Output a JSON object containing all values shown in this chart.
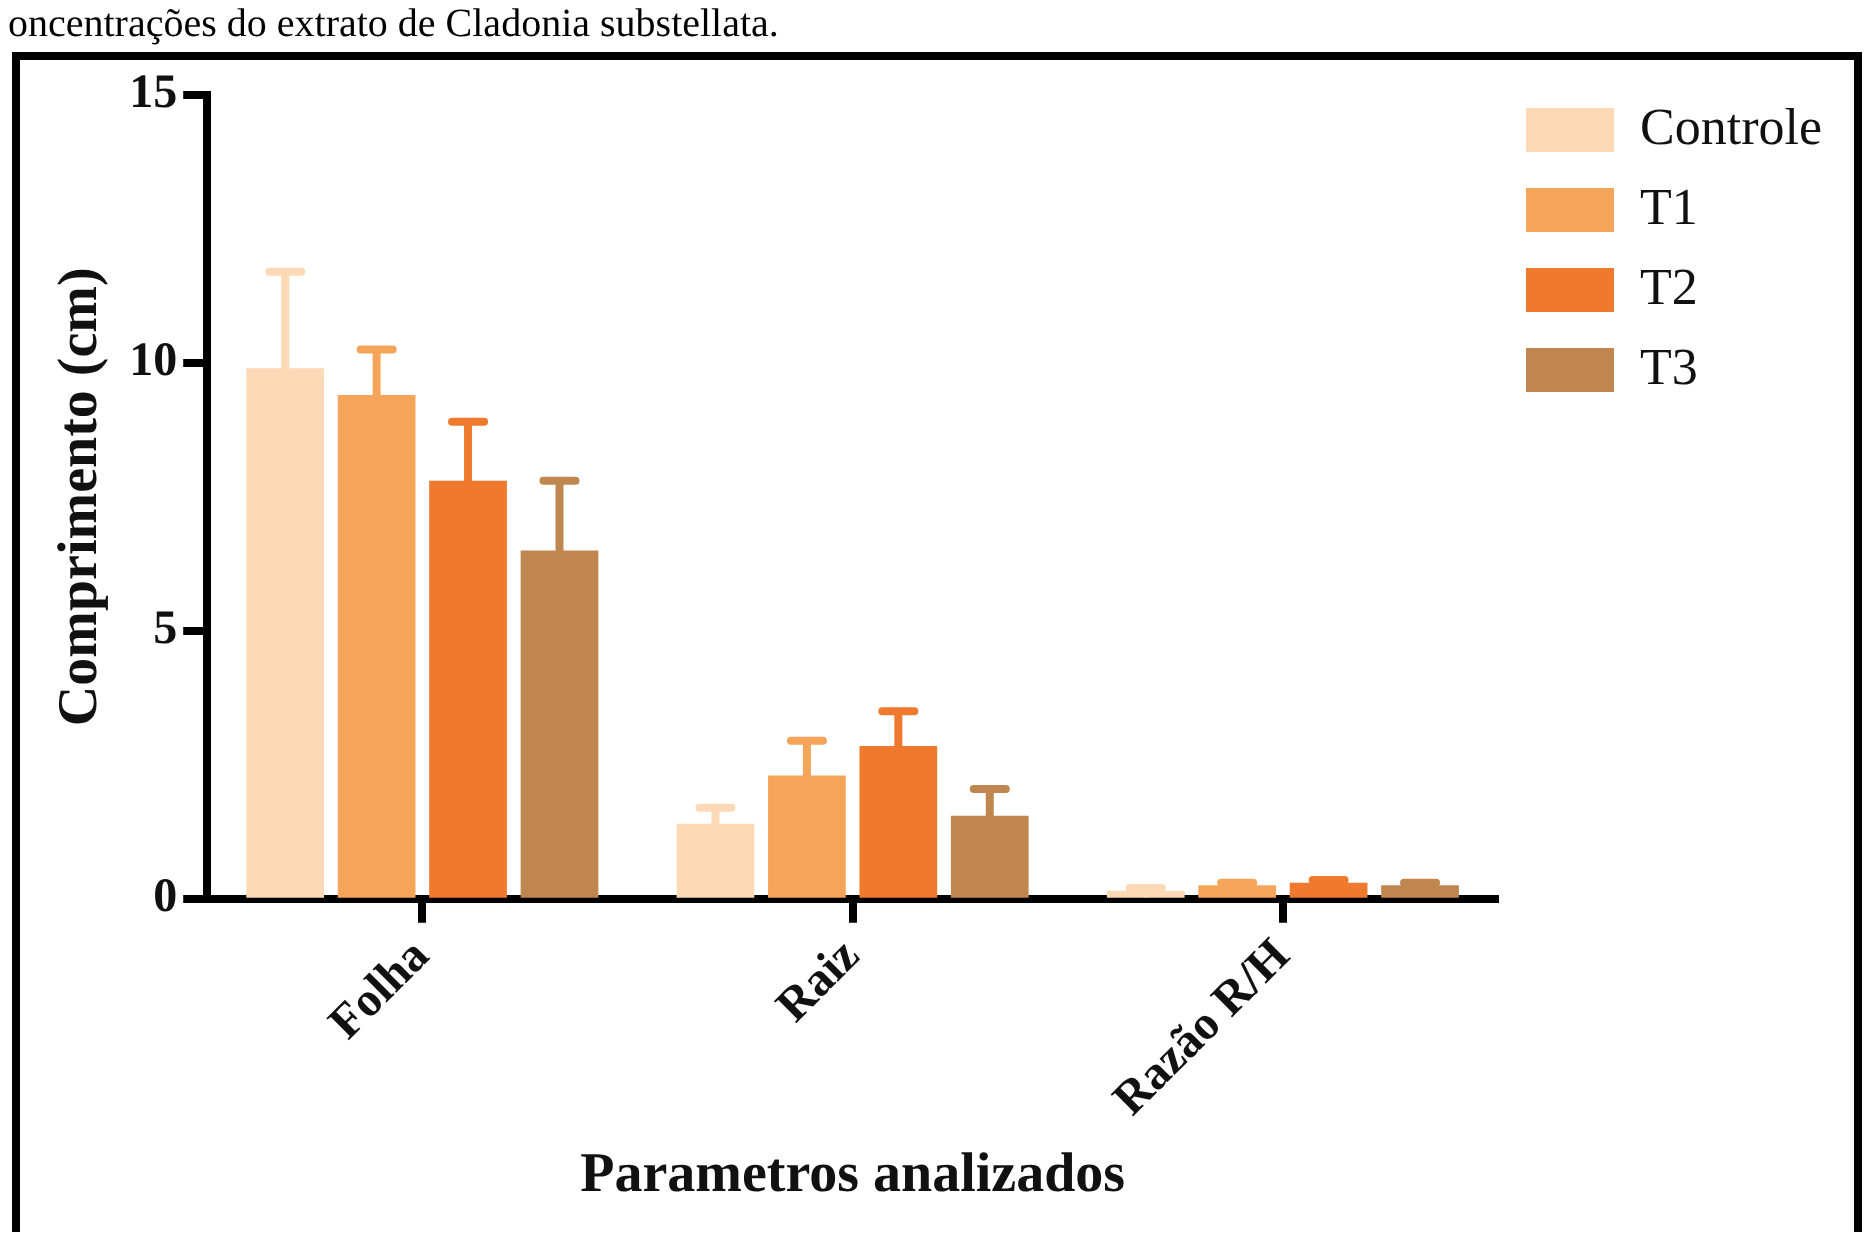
{
  "chart_data": {
    "type": "bar",
    "annotations": [
      "oncentrações do extrato de Cladonia substellata."
    ],
    "xlabel": "Parametros analizados",
    "ylabel": "Comprimento (cm)",
    "categories": [
      "Folha",
      "Raiz",
      "Razão R/H"
    ],
    "series": [
      {
        "name": "Controle",
        "color": "#fdd9b5",
        "values": [
          9.9,
          1.4,
          0.15
        ],
        "errors": [
          1.8,
          0.3,
          0.05
        ]
      },
      {
        "name": "T1",
        "color": "#f5a55a",
        "values": [
          9.4,
          2.3,
          0.25
        ],
        "errors": [
          0.85,
          0.65,
          0.05
        ]
      },
      {
        "name": "T2",
        "color": "#ef7a2e",
        "values": [
          7.8,
          2.85,
          0.3
        ],
        "errors": [
          1.1,
          0.65,
          0.05
        ]
      },
      {
        "name": "T3",
        "color": "#bf8650",
        "values": [
          6.5,
          1.55,
          0.25
        ],
        "errors": [
          1.3,
          0.5,
          0.05
        ]
      }
    ],
    "ylim": [
      0,
      15
    ],
    "yticks": [
      0,
      5,
      10,
      15
    ],
    "grid": false,
    "legend": "top right"
  }
}
